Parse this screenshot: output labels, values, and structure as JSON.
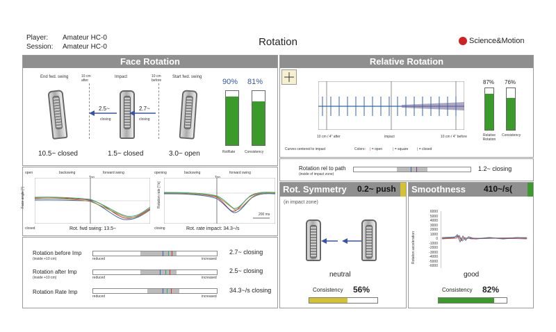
{
  "header": {
    "player_label": "Player:",
    "player_value": "Amateur HC-0",
    "session_label": "Session:",
    "session_value": "Amateur HC-0",
    "title": "Rotation",
    "brand": "Science&Motion"
  },
  "face_rotation": {
    "title": "Face Rotation",
    "clubs": [
      {
        "label": "End fwd. swing",
        "value": "10.5~ closed"
      },
      {
        "label": "Impact",
        "value": "1.5~ closed"
      },
      {
        "label": "Start fwd. swing",
        "value": "3.0~ open"
      }
    ],
    "after_label": "10 cm after",
    "before_label": "10 cm before",
    "arrow_left_value": "2.5~",
    "arrow_left_sub": "closing",
    "arrow_right_value": "2.7~",
    "arrow_right_sub": "closing",
    "bars": [
      {
        "pct": "90%",
        "label": "RotRate",
        "fill": 0.9
      },
      {
        "pct": "81%",
        "label": "Consistency",
        "fill": 0.81
      }
    ]
  },
  "curves": {
    "left": {
      "open": "open",
      "closed": "closed",
      "backswing": "backswing",
      "forward": "forward swing",
      "top": "Top",
      "ylabel": "Face angle [°]",
      "caption": "Rot. fwd swing: 13.5~"
    },
    "right": {
      "opening": "opening",
      "closing": "closing",
      "backswing": "backswing",
      "forward": "forward swing",
      "top": "Top",
      "ylabel": "Rotation rate [°/s]",
      "scale": "200 ms",
      "caption": "Rot. rate impact: 34.3~/s"
    }
  },
  "scales": [
    {
      "label": "Rotation before Imp",
      "sub": "(inside +10 cm)",
      "value": "2.7~ closing",
      "left": "reduced",
      "right": "increased"
    },
    {
      "label": "Rotation after Imp",
      "sub": "(inside +10 cm)",
      "value": "2.5~ closing",
      "left": "reduced",
      "right": "increased"
    },
    {
      "label": "Rotation Rate Imp",
      "sub": "",
      "value": "34.3~/s closing",
      "left": "reduced",
      "right": "increased"
    }
  ],
  "relative": {
    "title": "Relative Rotation",
    "after": "10 cm / 4\" after",
    "impact": "impact",
    "before": "10 cm / 4\" before",
    "centered": "Curves centered to impact",
    "colors_label": "Colors:",
    "legend": [
      {
        "name": "= open",
        "color": "#d33"
      },
      {
        "name": "= square",
        "color": "#36a"
      },
      {
        "name": "= closed",
        "color": "#749"
      }
    ],
    "bars": [
      {
        "pct": "87%",
        "label": "Relative Rotation",
        "fill": 0.87
      },
      {
        "pct": "76%",
        "label": "Consistency",
        "fill": 0.76
      }
    ],
    "path_label": "Rotation rel to path",
    "path_sub": "(inside of impact zone)",
    "path_value": "1.2~ closing"
  },
  "symmetry": {
    "title": "Rot. Symmetry",
    "value": "0.2~ push",
    "sub": "(in impact zone)",
    "result": "neutral",
    "consistency_label": "Consistency",
    "consistency_value": "56%",
    "fill": 0.56,
    "accent": "#d4c234"
  },
  "smoothness": {
    "title": "Smoothness",
    "value": "410~/s(",
    "ylabel": "Rotation acceleration",
    "yticks": [
      "6000",
      "5000",
      "4000",
      "3000",
      "2000",
      "1000",
      "0",
      "-1000",
      "-2000",
      "-3000",
      "-4000",
      "-5000",
      "-6000"
    ],
    "result": "good",
    "consistency_label": "Consistency",
    "consistency_value": "82%",
    "fill": 0.82,
    "accent": "#3a9a2a"
  }
}
